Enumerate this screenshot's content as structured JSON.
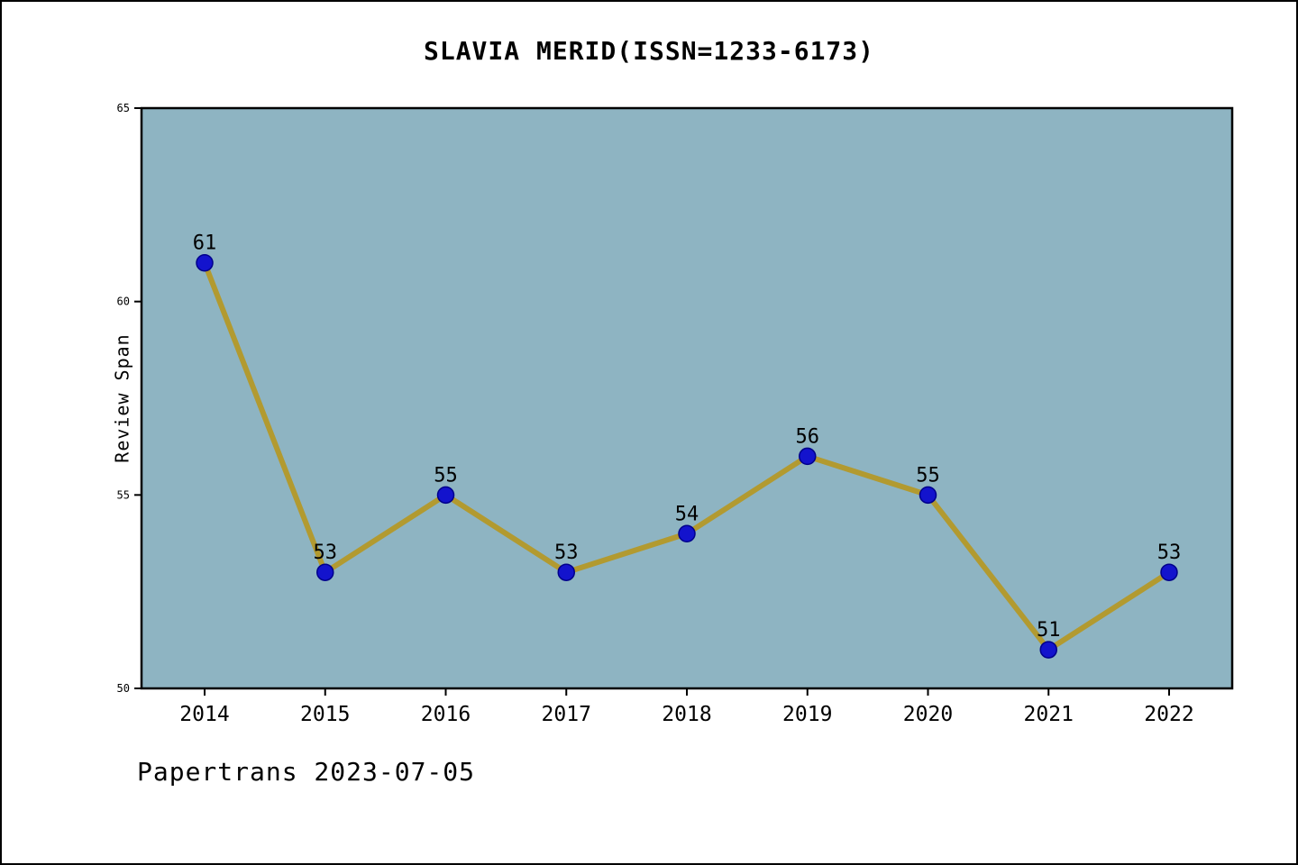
{
  "chart_data": {
    "type": "line",
    "title": "SLAVIA MERID(ISSN=1233-6173)",
    "ylabel": "Review Span",
    "xlabel": "",
    "categories": [
      "2014",
      "2015",
      "2016",
      "2017",
      "2018",
      "2019",
      "2020",
      "2021",
      "2022"
    ],
    "values": [
      61,
      53,
      55,
      53,
      54,
      56,
      55,
      51,
      53
    ],
    "point_labels": [
      "61",
      "53",
      "55",
      "53",
      "54",
      "56",
      "55",
      "51",
      "53"
    ],
    "ylim": [
      50,
      65
    ],
    "yticks": [
      50,
      55,
      60,
      65
    ],
    "grid": false,
    "legend": null,
    "plot_bg": "#8eb4c2",
    "line_color": "#b29a30",
    "marker_color": "#1313cd",
    "marker_edge_color": "#00008b",
    "axis_color": "#000000"
  },
  "footer": {
    "caption": "Papertrans 2023-07-05"
  }
}
